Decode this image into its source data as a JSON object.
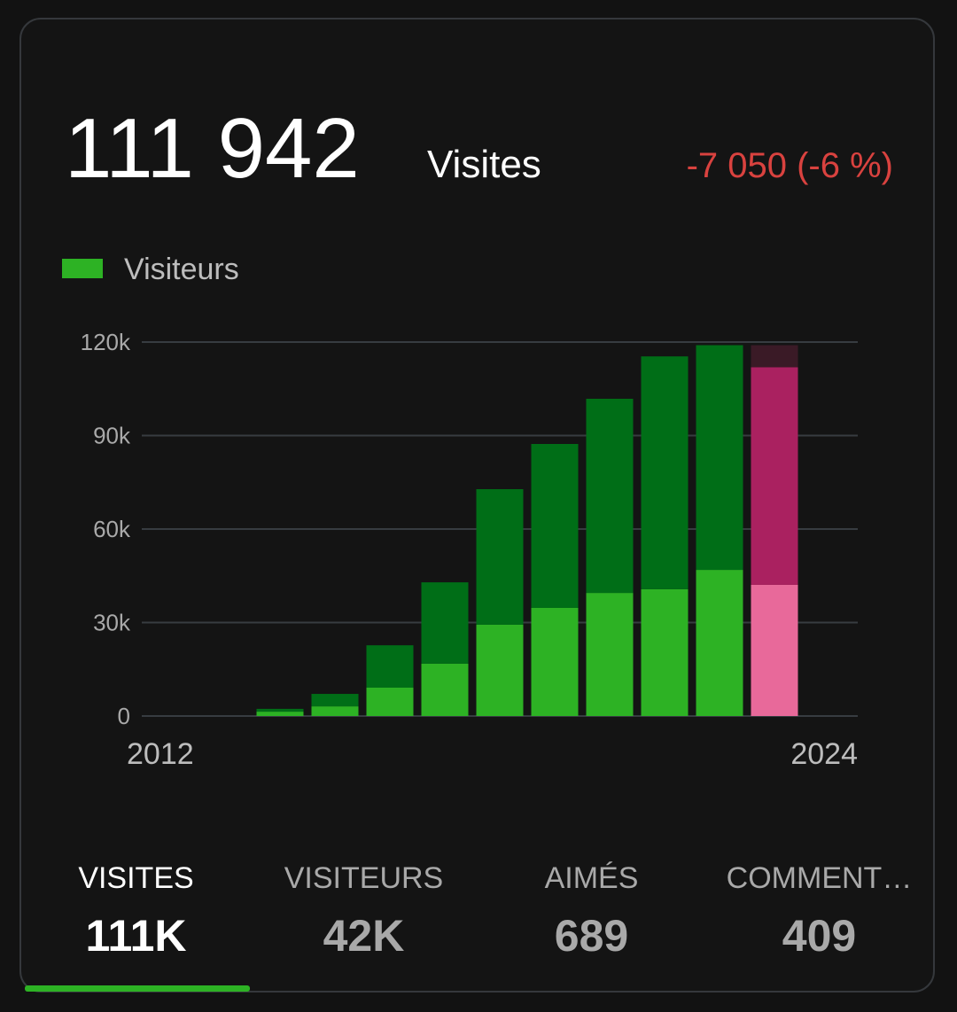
{
  "header": {
    "total": "111 942",
    "unit": "Visites",
    "change": "-7 050 (-6 %)"
  },
  "chart_data": {
    "type": "stacked_bar",
    "categories": [
      "2012",
      null,
      null,
      null,
      null,
      null,
      null,
      null,
      null,
      null,
      null,
      null,
      "2024"
    ],
    "series": [
      {
        "name": "Visiteurs",
        "color": "#2db224",
        "colors": [
          "#2db224",
          "#2db224",
          "#2db224",
          "#2db224",
          "#2db224",
          "#2db224",
          "#2db224",
          "#2db224",
          "#2db224",
          "#2db224",
          "#2db224",
          "#2db224",
          "#e8699a"
        ],
        "values": [
          null,
          null,
          null,
          1400,
          3100,
          9100,
          16800,
          29300,
          34700,
          39500,
          40700,
          46900,
          42100
        ]
      },
      {
        "color": "#006e17",
        "colors": [
          "#006e17",
          "#006e17",
          "#006e17",
          "#006e17",
          "#006e17",
          "#006e17",
          "#006e17",
          "#006e17",
          "#006e17",
          "#006e17",
          "#006e17",
          "#006e17",
          "#aa2160"
        ],
        "values": [
          null,
          null,
          null,
          900,
          4000,
          13600,
          26100,
          43500,
          52600,
          62300,
          74700,
          72100,
          69842
        ]
      },
      {
        "color": "#3a1a26",
        "colors": [
          "#3a1a26",
          "#3a1a26",
          "#3a1a26",
          "#3a1a26",
          "#3a1a26",
          "#3a1a26",
          "#3a1a26",
          "#3a1a26",
          "#3a1a26",
          "#3a1a26",
          "#3a1a26",
          "#3a1a26",
          "#3a1a26"
        ],
        "values": [
          null,
          null,
          null,
          null,
          null,
          null,
          null,
          null,
          null,
          null,
          null,
          null,
          7050
        ]
      }
    ],
    "ylim": [
      0,
      120000
    ],
    "yticks": [
      0,
      {
        "value": 30000,
        "label": "30k"
      },
      {
        "value": 60000,
        "label": "60k"
      },
      {
        "value": 90000,
        "label": "90k"
      },
      {
        "value": 120000,
        "label": "120k"
      }
    ],
    "grid": true
  },
  "tabs": [
    {
      "title": "VISITES",
      "value": "111K"
    },
    {
      "title": "VISITEURS",
      "value": "42K"
    },
    {
      "title": "AIMÉS",
      "value": "689"
    },
    {
      "title": "COMMENT…",
      "value": "409"
    }
  ]
}
